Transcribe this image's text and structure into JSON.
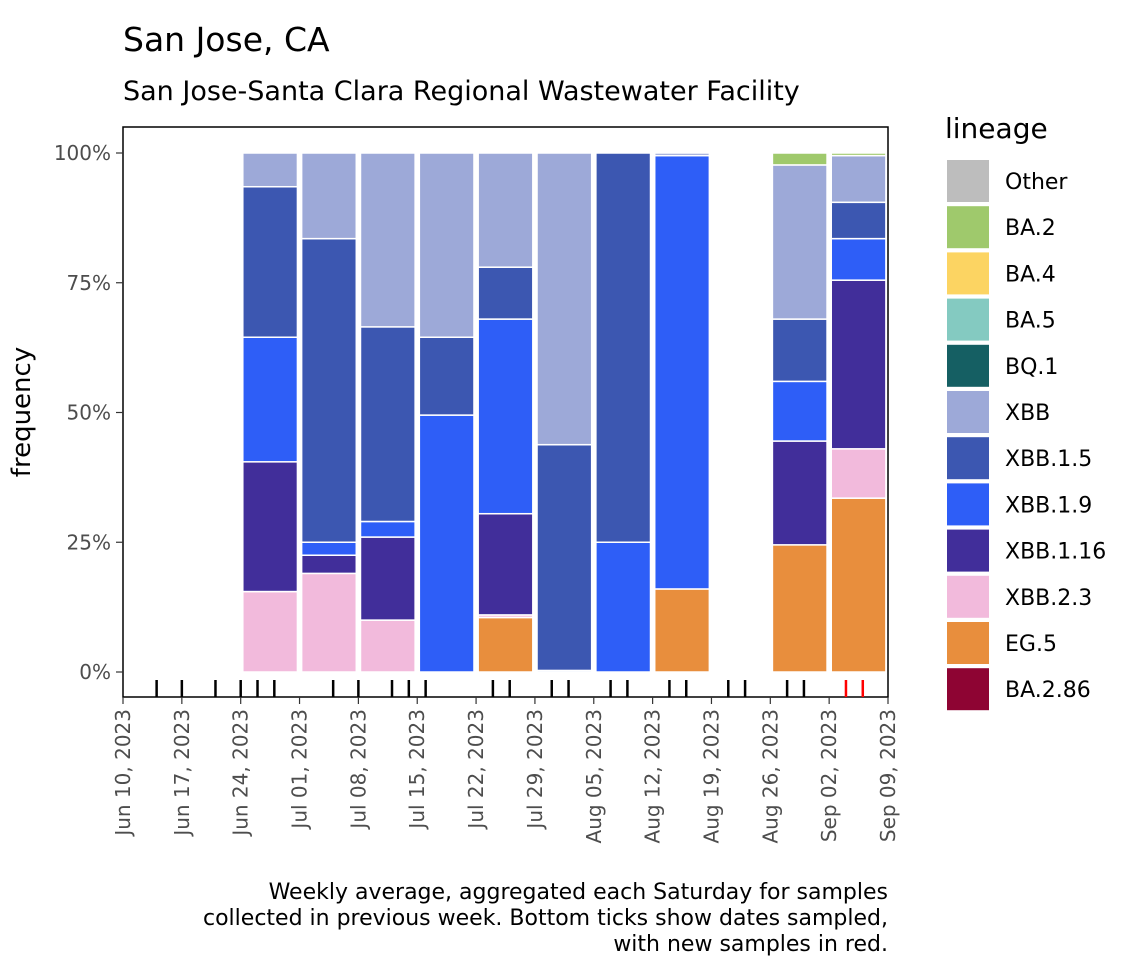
{
  "title": "San Jose, CA",
  "subtitle": "San Jose-Santa Clara Regional Wastewater Facility",
  "caption": [
    "Weekly average, aggregated each Saturday for samples",
    "collected in previous week. Bottom ticks show dates sampled,",
    "with new samples in red."
  ],
  "chart_data": {
    "type": "bar",
    "stacked": true,
    "ylabel": "frequency",
    "ylim": [
      0,
      100
    ],
    "yticks": [
      "0%",
      "25%",
      "50%",
      "75%",
      "100%"
    ],
    "ytick_values": [
      0,
      25,
      50,
      75,
      100
    ],
    "xlim_days": [
      0,
      91
    ],
    "xticks": [
      {
        "label": "Jun 10, 2023",
        "day": 0
      },
      {
        "label": "Jun 17, 2023",
        "day": 7
      },
      {
        "label": "Jun 24, 2023",
        "day": 14
      },
      {
        "label": "Jul 01, 2023",
        "day": 21
      },
      {
        "label": "Jul 08, 2023",
        "day": 28
      },
      {
        "label": "Jul 15, 2023",
        "day": 35
      },
      {
        "label": "Jul 22, 2023",
        "day": 42
      },
      {
        "label": "Jul 29, 2023",
        "day": 49
      },
      {
        "label": "Aug 05, 2023",
        "day": 56
      },
      {
        "label": "Aug 12, 2023",
        "day": 63
      },
      {
        "label": "Aug 19, 2023",
        "day": 70
      },
      {
        "label": "Aug 26, 2023",
        "day": 77
      },
      {
        "label": "Sep 02, 2023",
        "day": 84
      },
      {
        "label": "Sep 09, 2023",
        "day": 91
      }
    ],
    "lineages": [
      {
        "name": "Other",
        "color": "#BDBDBD"
      },
      {
        "name": "BA.2",
        "color": "#9FC96C"
      },
      {
        "name": "BA.4",
        "color": "#FCD462"
      },
      {
        "name": "BA.5",
        "color": "#84CAC1"
      },
      {
        "name": "BQ.1",
        "color": "#155F63"
      },
      {
        "name": "XBB",
        "color": "#9DA9D8"
      },
      {
        "name": "XBB.1.5",
        "color": "#3C57B1"
      },
      {
        "name": "XBB.1.9",
        "color": "#2E5EF7"
      },
      {
        "name": "XBB.1.16",
        "color": "#412E9A"
      },
      {
        "name": "XBB.2.3",
        "color": "#F2BADC"
      },
      {
        "name": "EG.5",
        "color": "#E88E3D"
      },
      {
        "name": "BA.2.86",
        "color": "#8E0433"
      }
    ],
    "stack_order_bottom_to_top": [
      "BA.2.86",
      "EG.5",
      "XBB.2.3",
      "XBB.1.16",
      "XBB.1.9",
      "XBB.1.5",
      "XBB",
      "BQ.1",
      "BA.5",
      "BA.4",
      "BA.2",
      "Other"
    ],
    "weeks": [
      {
        "day_start": 14,
        "values": {
          "XBB.2.3": 15.5,
          "XBB.1.16": 25,
          "XBB.1.9": 24,
          "XBB.1.5": 29,
          "XBB": 6.5
        }
      },
      {
        "day_start": 21,
        "values": {
          "XBB.2.3": 19,
          "XBB.1.16": 3.5,
          "XBB.1.9": 2.5,
          "XBB.1.5": 58.5,
          "XBB": 16.5
        }
      },
      {
        "day_start": 28,
        "values": {
          "XBB.2.3": 10,
          "XBB.1.16": 16,
          "XBB.1.9": 3,
          "XBB.1.5": 37.5,
          "XBB": 33.5
        }
      },
      {
        "day_start": 35,
        "values": {
          "XBB.1.9": 49.5,
          "XBB.1.5": 15,
          "XBB": 35.5
        }
      },
      {
        "day_start": 42,
        "values": {
          "EG.5": 10.5,
          "XBB.2.3": 0.5,
          "XBB.1.16": 19.5,
          "XBB.1.9": 37.5,
          "XBB.1.5": 10,
          "XBB": 22
        }
      },
      {
        "day_start": 49,
        "values": {
          "XBB.1.9": 0.3,
          "XBB.1.5": 43.5,
          "XBB": 56.2
        }
      },
      {
        "day_start": 56,
        "values": {
          "XBB.1.9": 25,
          "XBB.1.5": 75
        }
      },
      {
        "day_start": 63,
        "values": {
          "EG.5": 16,
          "XBB.1.9": 83.5,
          "XBB": 0.5
        }
      },
      {
        "day_start": 77,
        "values": {
          "EG.5": 24.5,
          "XBB.1.16": 20,
          "XBB.1.9": 11.5,
          "XBB.1.5": 12,
          "XBB": 29.7,
          "BA.2": 2.3
        }
      },
      {
        "day_start": 84,
        "values": {
          "EG.5": 33.5,
          "XBB.2.3": 9.5,
          "XBB.1.16": 32.5,
          "XBB.1.9": 8,
          "XBB.1.5": 7,
          "XBB": 9,
          "BA.2": 0.5
        }
      }
    ],
    "sample_dates_days": [
      4,
      7,
      11,
      14,
      16,
      18,
      25,
      28,
      32,
      34,
      36,
      44,
      46,
      51,
      53,
      58,
      60,
      65,
      67,
      72,
      74,
      79,
      81
    ],
    "new_sample_dates_days": [
      86,
      88
    ]
  }
}
